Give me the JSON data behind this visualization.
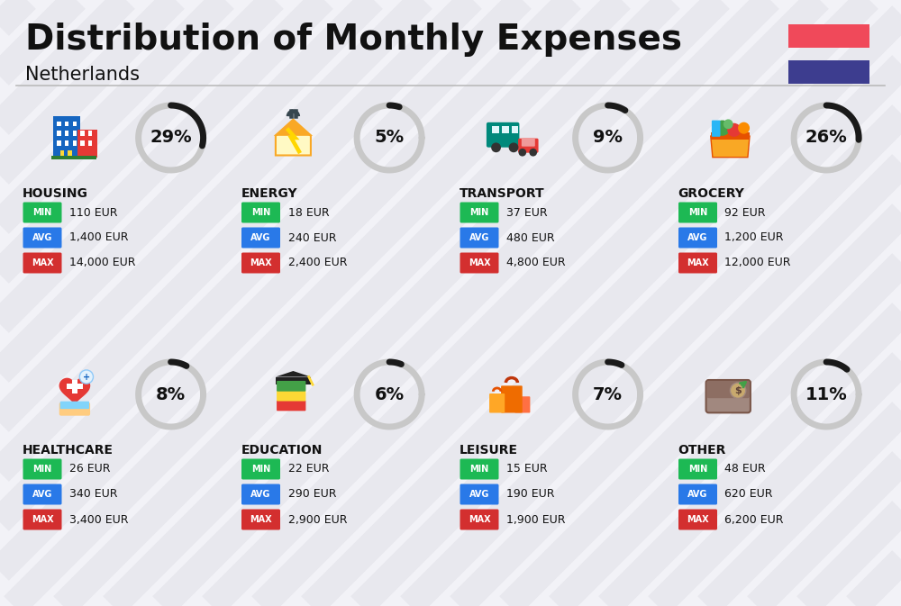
{
  "title": "Distribution of Monthly Expenses",
  "subtitle": "Netherlands",
  "bg_color": "#f2f2f7",
  "flag_red": "#f0495a",
  "flag_blue": "#3d3d8f",
  "categories": [
    {
      "name": "HOUSING",
      "pct": 29,
      "min_val": "110 EUR",
      "avg_val": "1,400 EUR",
      "max_val": "14,000 EUR",
      "row": 0,
      "col": 0
    },
    {
      "name": "ENERGY",
      "pct": 5,
      "min_val": "18 EUR",
      "avg_val": "240 EUR",
      "max_val": "2,400 EUR",
      "row": 0,
      "col": 1
    },
    {
      "name": "TRANSPORT",
      "pct": 9,
      "min_val": "37 EUR",
      "avg_val": "480 EUR",
      "max_val": "4,800 EUR",
      "row": 0,
      "col": 2
    },
    {
      "name": "GROCERY",
      "pct": 26,
      "min_val": "92 EUR",
      "avg_val": "1,200 EUR",
      "max_val": "12,000 EUR",
      "row": 0,
      "col": 3
    },
    {
      "name": "HEALTHCARE",
      "pct": 8,
      "min_val": "26 EUR",
      "avg_val": "340 EUR",
      "max_val": "3,400 EUR",
      "row": 1,
      "col": 0
    },
    {
      "name": "EDUCATION",
      "pct": 6,
      "min_val": "22 EUR",
      "avg_val": "290 EUR",
      "max_val": "2,900 EUR",
      "row": 1,
      "col": 1
    },
    {
      "name": "LEISURE",
      "pct": 7,
      "min_val": "15 EUR",
      "avg_val": "190 EUR",
      "max_val": "1,900 EUR",
      "row": 1,
      "col": 2
    },
    {
      "name": "OTHER",
      "pct": 11,
      "min_val": "48 EUR",
      "avg_val": "620 EUR",
      "max_val": "6,200 EUR",
      "row": 1,
      "col": 3
    }
  ],
  "min_color": "#1db954",
  "avg_color": "#2979e8",
  "max_color": "#d32f2f",
  "arc_filled": "#1a1a1a",
  "arc_empty": "#c8c8c8",
  "text_color": "#111111",
  "stripe_color": "#e8e8ee",
  "separator_color": "#bbbbbb",
  "title_fontsize": 28,
  "subtitle_fontsize": 15,
  "name_fontsize": 10,
  "val_fontsize": 9,
  "badge_fontsize": 7,
  "pct_fontsize": 14
}
